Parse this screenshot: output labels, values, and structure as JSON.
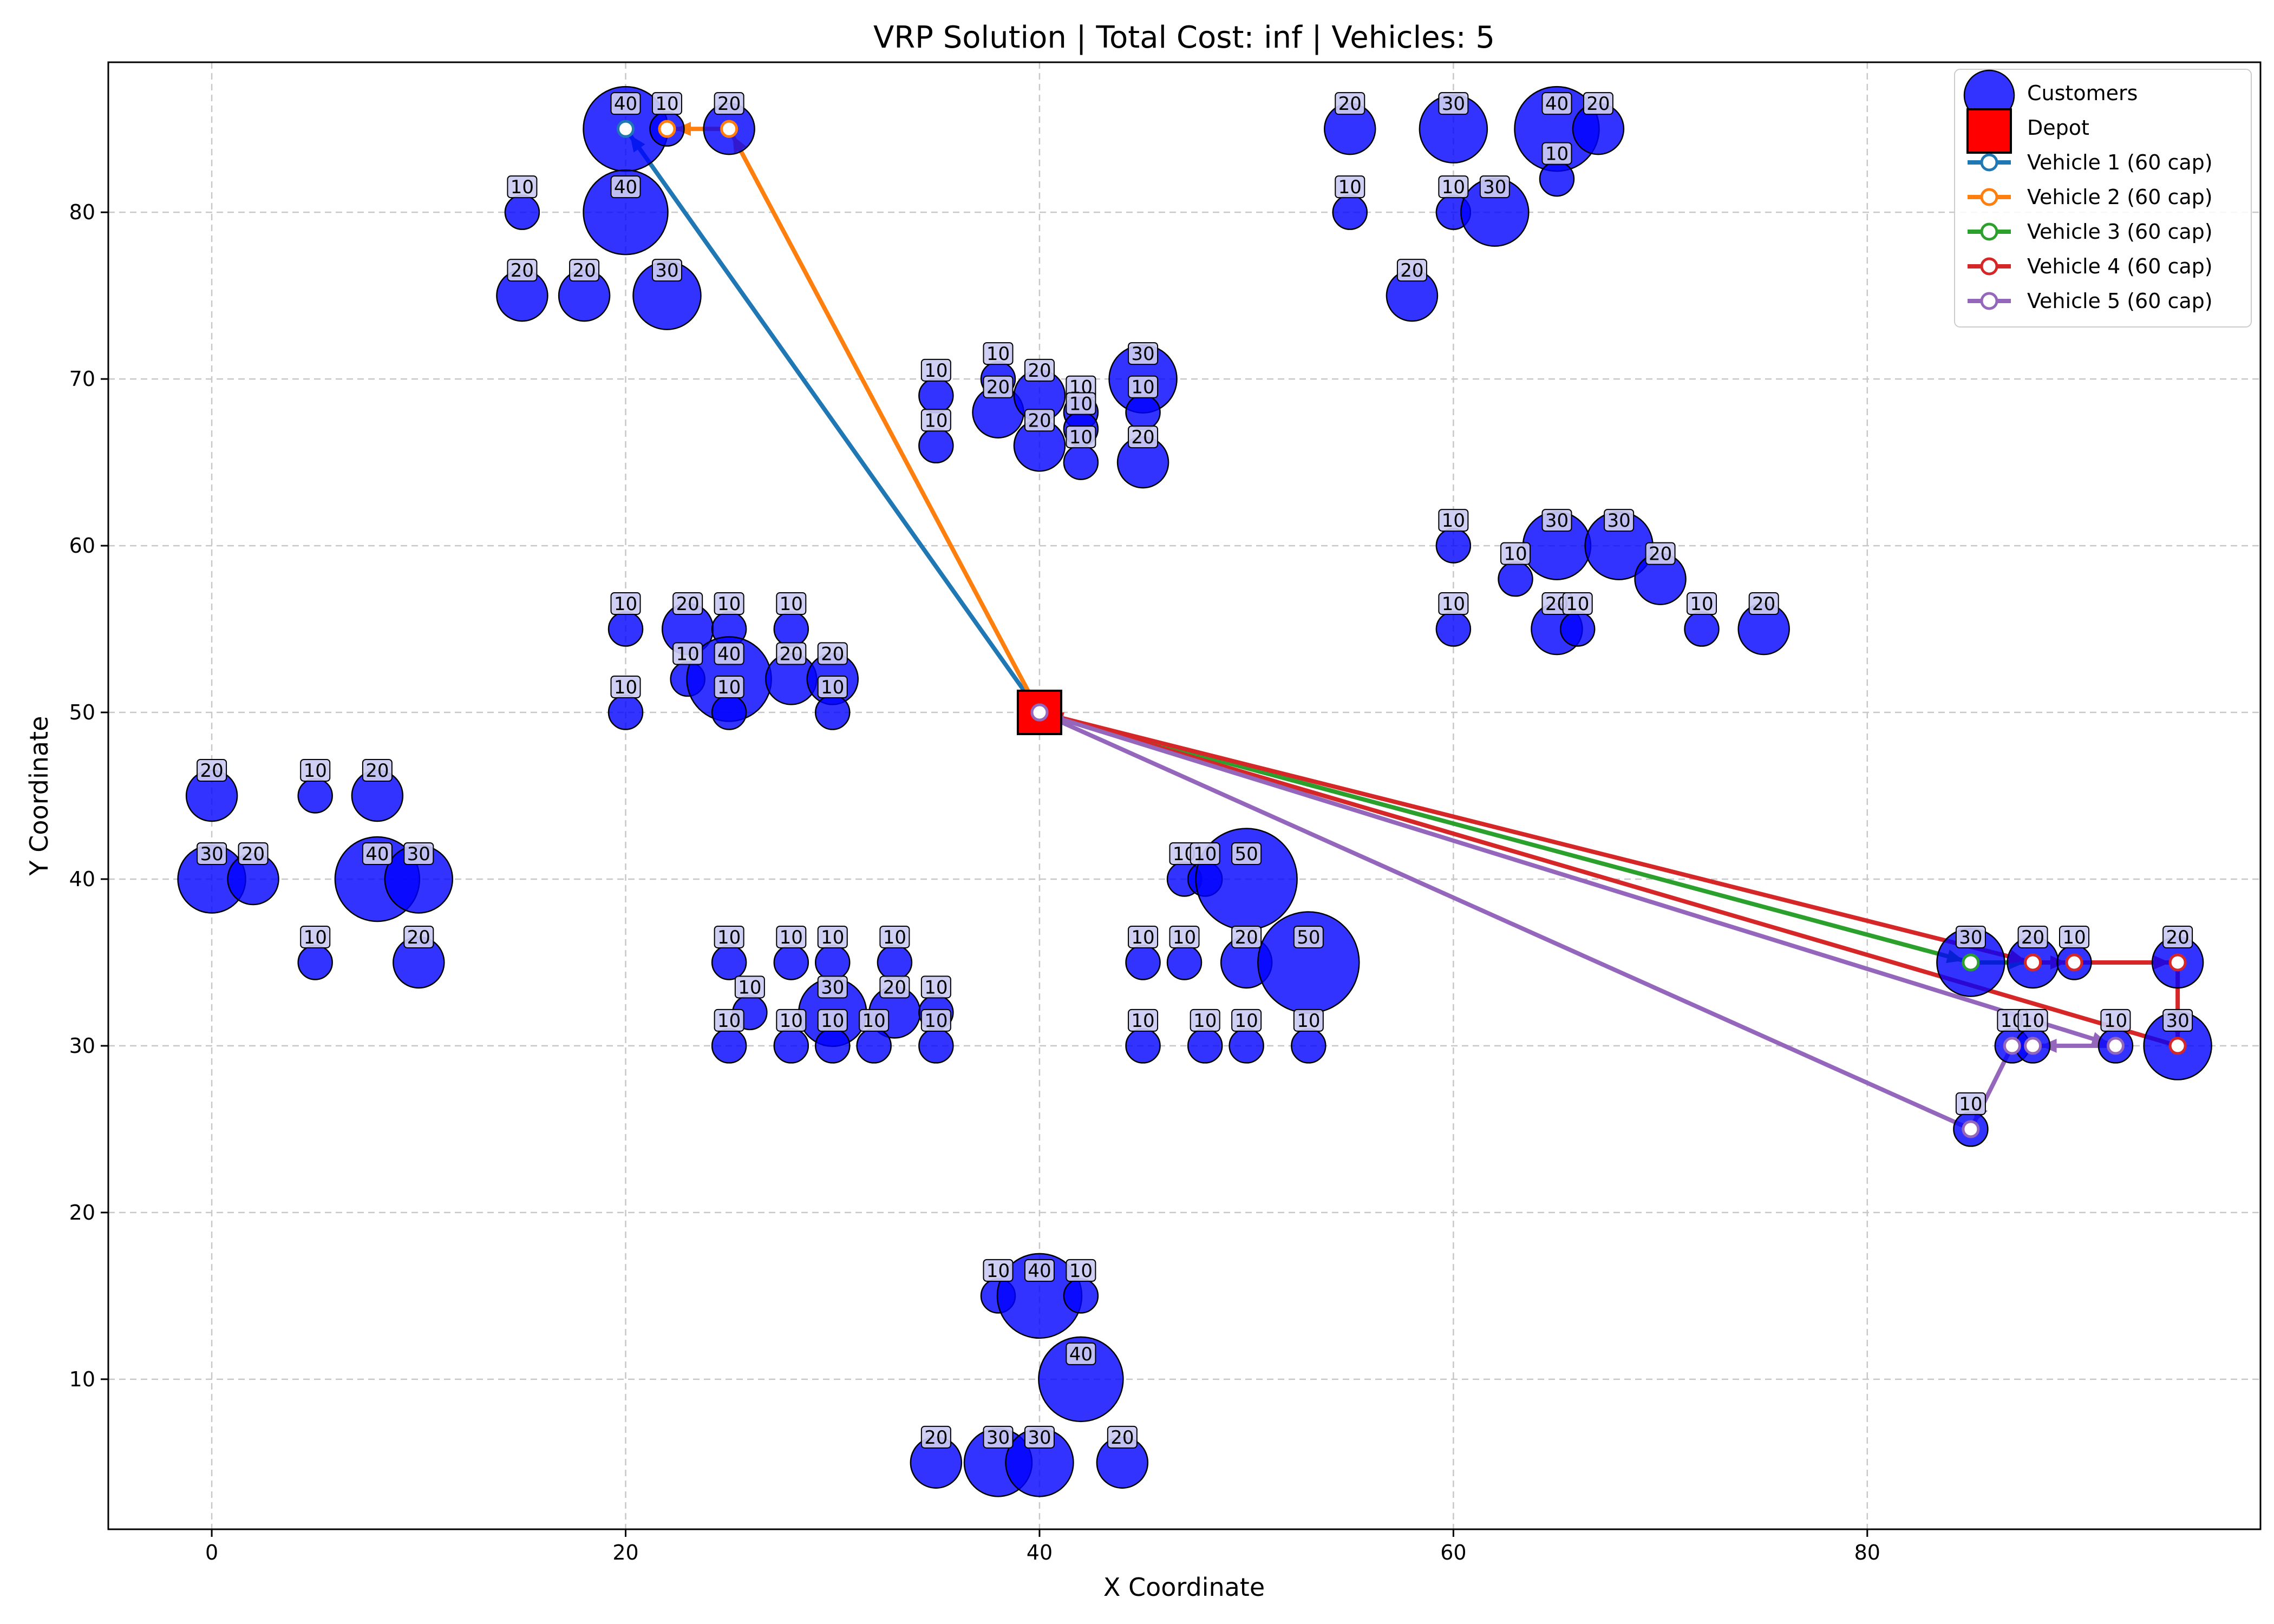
{
  "chart_data": {
    "type": "scatter",
    "title": "VRP Solution | Total Cost: inf | Vehicles: 5",
    "xlabel": "X Coordinate",
    "ylabel": "Y Coordinate",
    "xlim": [
      -5,
      99
    ],
    "ylim": [
      1,
      89
    ],
    "x_ticks": [
      0,
      20,
      40,
      60,
      80
    ],
    "y_ticks": [
      10,
      20,
      30,
      40,
      50,
      60,
      70,
      80
    ],
    "grid": true,
    "legend_position": "top-right",
    "colors": {
      "customer": "#0000ff",
      "depot": "#ff0000",
      "grid": "#c8c8c8",
      "label_box": "#cbcbf2"
    },
    "legend": [
      {
        "label": "Customers",
        "kind": "customer"
      },
      {
        "label": "Depot",
        "kind": "depot"
      },
      {
        "label": "Vehicle 1 (60 cap)",
        "kind": "route",
        "color": "#1f77b4"
      },
      {
        "label": "Vehicle 2 (60 cap)",
        "kind": "route",
        "color": "#ff7f0e"
      },
      {
        "label": "Vehicle 3 (60 cap)",
        "kind": "route",
        "color": "#2ca02c"
      },
      {
        "label": "Vehicle 4 (60 cap)",
        "kind": "route",
        "color": "#d62728"
      },
      {
        "label": "Vehicle 5 (60 cap)",
        "kind": "route",
        "color": "#9467bd"
      }
    ],
    "depot": {
      "x": 40,
      "y": 50
    },
    "customers": [
      {
        "x": 20,
        "y": 85,
        "demand": "40"
      },
      {
        "x": 22,
        "y": 85,
        "demand": "10"
      },
      {
        "x": 25,
        "y": 85,
        "demand": "20"
      },
      {
        "x": 15,
        "y": 80,
        "demand": "10"
      },
      {
        "x": 20,
        "y": 80,
        "demand": "40"
      },
      {
        "x": 15,
        "y": 75,
        "demand": "20"
      },
      {
        "x": 18,
        "y": 75,
        "demand": "20"
      },
      {
        "x": 22,
        "y": 75,
        "demand": "30"
      },
      {
        "x": 55,
        "y": 85,
        "demand": "20"
      },
      {
        "x": 60,
        "y": 85,
        "demand": "30"
      },
      {
        "x": 65,
        "y": 85,
        "demand": "40"
      },
      {
        "x": 67,
        "y": 85,
        "demand": "20"
      },
      {
        "x": 65,
        "y": 82,
        "demand": "10"
      },
      {
        "x": 55,
        "y": 80,
        "demand": "10"
      },
      {
        "x": 60,
        "y": 80,
        "demand": "10"
      },
      {
        "x": 62,
        "y": 80,
        "demand": "30"
      },
      {
        "x": 58,
        "y": 75,
        "demand": "20"
      },
      {
        "x": 35,
        "y": 69,
        "demand": "10"
      },
      {
        "x": 38,
        "y": 70,
        "demand": "10"
      },
      {
        "x": 38,
        "y": 68,
        "demand": "20"
      },
      {
        "x": 40,
        "y": 69,
        "demand": "20"
      },
      {
        "x": 42,
        "y": 68,
        "demand": "10"
      },
      {
        "x": 45,
        "y": 70,
        "demand": "30"
      },
      {
        "x": 45,
        "y": 68,
        "demand": "10"
      },
      {
        "x": 35,
        "y": 66,
        "demand": "10"
      },
      {
        "x": 40,
        "y": 66,
        "demand": "20"
      },
      {
        "x": 42,
        "y": 67,
        "demand": "10"
      },
      {
        "x": 42,
        "y": 65,
        "demand": "10"
      },
      {
        "x": 45,
        "y": 65,
        "demand": "20"
      },
      {
        "x": 60,
        "y": 60,
        "demand": "10"
      },
      {
        "x": 65,
        "y": 60,
        "demand": "30"
      },
      {
        "x": 68,
        "y": 60,
        "demand": "30"
      },
      {
        "x": 63,
        "y": 58,
        "demand": "10"
      },
      {
        "x": 70,
        "y": 58,
        "demand": "20"
      },
      {
        "x": 60,
        "y": 55,
        "demand": "10"
      },
      {
        "x": 65,
        "y": 55,
        "demand": "20"
      },
      {
        "x": 66,
        "y": 55,
        "demand": "10"
      },
      {
        "x": 72,
        "y": 55,
        "demand": "10"
      },
      {
        "x": 75,
        "y": 55,
        "demand": "20"
      },
      {
        "x": 20,
        "y": 55,
        "demand": "10"
      },
      {
        "x": 23,
        "y": 55,
        "demand": "20"
      },
      {
        "x": 25,
        "y": 55,
        "demand": "10"
      },
      {
        "x": 28,
        "y": 55,
        "demand": "10"
      },
      {
        "x": 23,
        "y": 52,
        "demand": "10"
      },
      {
        "x": 25,
        "y": 52,
        "demand": "40"
      },
      {
        "x": 28,
        "y": 52,
        "demand": "20"
      },
      {
        "x": 30,
        "y": 52,
        "demand": "20"
      },
      {
        "x": 20,
        "y": 50,
        "demand": "10"
      },
      {
        "x": 25,
        "y": 50,
        "demand": "10"
      },
      {
        "x": 30,
        "y": 50,
        "demand": "10"
      },
      {
        "x": 0,
        "y": 45,
        "demand": "20"
      },
      {
        "x": 5,
        "y": 45,
        "demand": "10"
      },
      {
        "x": 8,
        "y": 45,
        "demand": "20"
      },
      {
        "x": 0,
        "y": 40,
        "demand": "30"
      },
      {
        "x": 2,
        "y": 40,
        "demand": "20"
      },
      {
        "x": 8,
        "y": 40,
        "demand": "40"
      },
      {
        "x": 10,
        "y": 40,
        "demand": "30"
      },
      {
        "x": 5,
        "y": 35,
        "demand": "10"
      },
      {
        "x": 10,
        "y": 35,
        "demand": "20"
      },
      {
        "x": 25,
        "y": 35,
        "demand": "10"
      },
      {
        "x": 28,
        "y": 35,
        "demand": "10"
      },
      {
        "x": 30,
        "y": 35,
        "demand": "10"
      },
      {
        "x": 33,
        "y": 35,
        "demand": "10"
      },
      {
        "x": 26,
        "y": 32,
        "demand": "10"
      },
      {
        "x": 30,
        "y": 32,
        "demand": "30"
      },
      {
        "x": 33,
        "y": 32,
        "demand": "20"
      },
      {
        "x": 35,
        "y": 32,
        "demand": "10"
      },
      {
        "x": 25,
        "y": 30,
        "demand": "10"
      },
      {
        "x": 28,
        "y": 30,
        "demand": "10"
      },
      {
        "x": 30,
        "y": 30,
        "demand": "10"
      },
      {
        "x": 32,
        "y": 30,
        "demand": "10"
      },
      {
        "x": 35,
        "y": 30,
        "demand": "10"
      },
      {
        "x": 47,
        "y": 40,
        "demand": "10"
      },
      {
        "x": 48,
        "y": 40,
        "demand": "10"
      },
      {
        "x": 50,
        "y": 40,
        "demand": "50"
      },
      {
        "x": 45,
        "y": 35,
        "demand": "10"
      },
      {
        "x": 47,
        "y": 35,
        "demand": "10"
      },
      {
        "x": 50,
        "y": 35,
        "demand": "20"
      },
      {
        "x": 53,
        "y": 35,
        "demand": "50"
      },
      {
        "x": 45,
        "y": 30,
        "demand": "10"
      },
      {
        "x": 48,
        "y": 30,
        "demand": "10"
      },
      {
        "x": 50,
        "y": 30,
        "demand": "10"
      },
      {
        "x": 53,
        "y": 30,
        "demand": "10"
      },
      {
        "x": 85,
        "y": 35,
        "demand": "30"
      },
      {
        "x": 88,
        "y": 35,
        "demand": "20"
      },
      {
        "x": 90,
        "y": 35,
        "demand": "10"
      },
      {
        "x": 95,
        "y": 35,
        "demand": "20"
      },
      {
        "x": 87,
        "y": 30,
        "demand": "10"
      },
      {
        "x": 88,
        "y": 30,
        "demand": "10"
      },
      {
        "x": 92,
        "y": 30,
        "demand": "10"
      },
      {
        "x": 95,
        "y": 30,
        "demand": "30"
      },
      {
        "x": 85,
        "y": 25,
        "demand": "10"
      },
      {
        "x": 38,
        "y": 15,
        "demand": "10"
      },
      {
        "x": 40,
        "y": 15,
        "demand": "40"
      },
      {
        "x": 42,
        "y": 15,
        "demand": "10"
      },
      {
        "x": 42,
        "y": 10,
        "demand": "40"
      },
      {
        "x": 35,
        "y": 5,
        "demand": "20"
      },
      {
        "x": 38,
        "y": 5,
        "demand": "30"
      },
      {
        "x": 40,
        "y": 5,
        "demand": "30"
      },
      {
        "x": 44,
        "y": 5,
        "demand": "20"
      }
    ],
    "routes": [
      {
        "name": "Vehicle 1 (60 cap)",
        "color": "#1f77b4",
        "points": [
          [
            40,
            50
          ],
          [
            20,
            85
          ]
        ]
      },
      {
        "name": "Vehicle 2 (60 cap)",
        "color": "#ff7f0e",
        "points": [
          [
            40,
            50
          ],
          [
            25,
            85
          ],
          [
            22,
            85
          ]
        ]
      },
      {
        "name": "Vehicle 3 (60 cap)",
        "color": "#2ca02c",
        "points": [
          [
            40,
            50
          ],
          [
            85,
            35
          ],
          [
            88,
            35
          ]
        ]
      },
      {
        "name": "Vehicle 4 (60 cap)",
        "color": "#d62728",
        "points": [
          [
            40,
            50
          ],
          [
            88,
            35
          ],
          [
            90,
            35
          ],
          [
            95,
            35
          ],
          [
            95,
            30
          ],
          [
            40,
            50
          ]
        ]
      },
      {
        "name": "Vehicle 5 (60 cap)",
        "color": "#9467bd",
        "points": [
          [
            40,
            50
          ],
          [
            92,
            30
          ],
          [
            88,
            30
          ],
          [
            87,
            30
          ],
          [
            85,
            25
          ],
          [
            40,
            50
          ]
        ]
      }
    ]
  }
}
